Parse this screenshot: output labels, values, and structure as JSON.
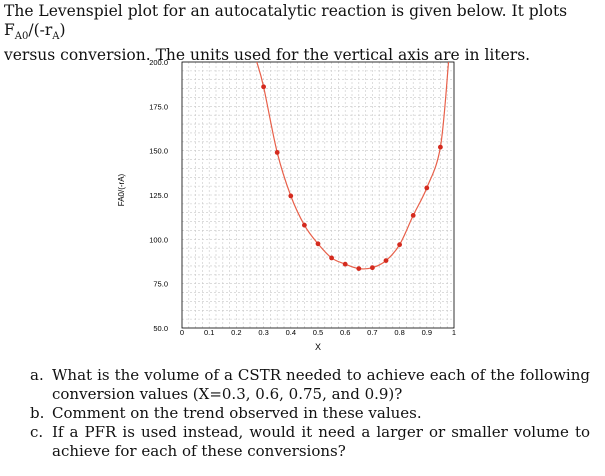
{
  "intro": {
    "line1_pre": "The Levenspiel plot for an autocatalytic reaction is given below. It plots F",
    "sub1": "A0",
    "mid": "/(-r",
    "sub2": "A",
    "line1_post": ")",
    "line2": "versus conversion. The units used for the vertical axis are in liters."
  },
  "questions": [
    {
      "letter": "a.",
      "text": "What is the volume of a CSTR needed to achieve each of the following conversion values (X=0.3, 0.6, 0.75, and 0.9)?"
    },
    {
      "letter": "b.",
      "text": "Comment on the trend observed in these values."
    },
    {
      "letter": "c.",
      "text": "If a PFR is used instead, would it need a larger or smaller volume to achieve for each of these conversions?"
    }
  ],
  "chart_data": {
    "type": "scatter",
    "title": "",
    "xlabel": "X",
    "ylabel": "FA0/(-rA)",
    "xlim": [
      0,
      1
    ],
    "ylim": [
      50,
      200
    ],
    "x_ticks": [
      "0",
      "0.1",
      "0.2",
      "0.3",
      "0.4",
      "0.5",
      "0.6",
      "0.7",
      "0.8",
      "0.9",
      "1"
    ],
    "y_ticks": [
      "50.0",
      "75.0",
      "100.0",
      "125.0",
      "150.0",
      "175.0",
      "200.0"
    ],
    "grid": true,
    "legend": "none",
    "line_color": "#e8604a",
    "marker_color": "#d42a1e",
    "series": [
      {
        "points": [
          {
            "x": 0.3,
            "y": 186
          },
          {
            "x": 0.35,
            "y": 149
          },
          {
            "x": 0.4,
            "y": 124.5
          },
          {
            "x": 0.45,
            "y": 108
          },
          {
            "x": 0.5,
            "y": 97.5
          },
          {
            "x": 0.55,
            "y": 89.5
          },
          {
            "x": 0.6,
            "y": 86
          },
          {
            "x": 0.65,
            "y": 83.5
          },
          {
            "x": 0.7,
            "y": 84
          },
          {
            "x": 0.75,
            "y": 88
          },
          {
            "x": 0.8,
            "y": 97
          },
          {
            "x": 0.85,
            "y": 113.5
          },
          {
            "x": 0.9,
            "y": 129
          },
          {
            "x": 0.95,
            "y": 152
          }
        ],
        "curve_ends": [
          {
            "x": 0.275,
            "y": 200
          },
          {
            "x": 0.98,
            "y": 200
          }
        ]
      }
    ]
  }
}
